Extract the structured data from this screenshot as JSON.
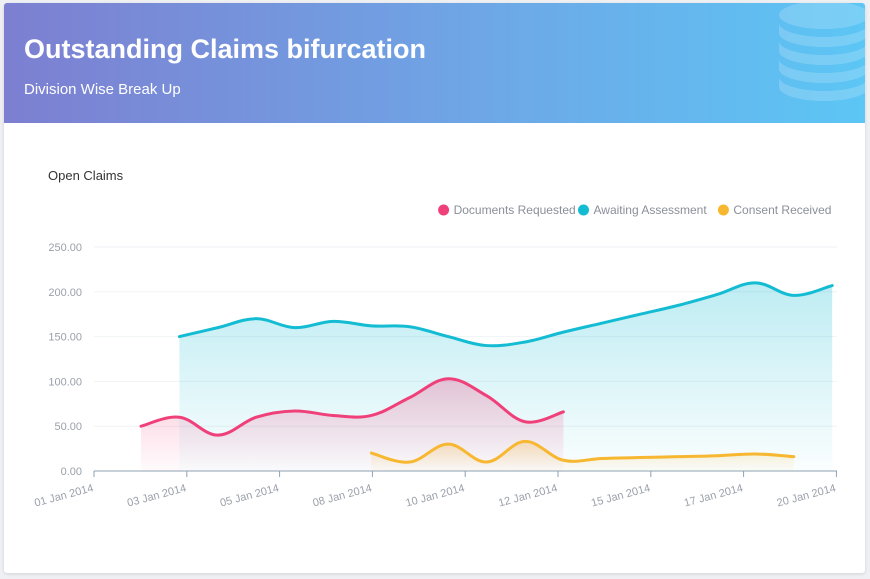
{
  "header": {
    "title": "Outstanding Claims bifurcation",
    "subtitle": "Division Wise Break Up",
    "icon": "database-icon"
  },
  "chart_data": {
    "type": "area",
    "title": "Open Claims",
    "legend_position": "top-right",
    "grid": true,
    "ylim": [
      0,
      250
    ],
    "y_ticks": [
      "0.00",
      "50.00",
      "100.00",
      "150.00",
      "200.00",
      "250.00"
    ],
    "x_ticks": [
      "01 Jan 2014",
      "03 Jan 2014",
      "05 Jan 2014",
      "08 Jan 2014",
      "10 Jan 2014",
      "12 Jan 2014",
      "15 Jan 2014",
      "17 Jan 2014",
      "20 Jan 2014"
    ],
    "series": [
      {
        "name": "Documents Requested",
        "color": "#f0407a",
        "points": [
          [
            0.0,
            50
          ],
          [
            0.4,
            60
          ],
          [
            0.8,
            40
          ],
          [
            1.2,
            60
          ],
          [
            1.6,
            67
          ],
          [
            2.0,
            62
          ],
          [
            2.4,
            62
          ],
          [
            2.8,
            82
          ],
          [
            3.2,
            103
          ],
          [
            3.6,
            84
          ],
          [
            4.0,
            55
          ],
          [
            4.4,
            66
          ]
        ]
      },
      {
        "name": "Awaiting Assessment",
        "color": "#14bcd3",
        "points": [
          [
            0.4,
            150
          ],
          [
            0.8,
            160
          ],
          [
            1.2,
            170
          ],
          [
            1.6,
            160
          ],
          [
            2.0,
            167
          ],
          [
            2.4,
            162
          ],
          [
            2.8,
            161
          ],
          [
            3.2,
            150
          ],
          [
            3.6,
            140
          ],
          [
            4.0,
            144
          ],
          [
            4.4,
            155
          ],
          [
            4.8,
            165
          ],
          [
            5.2,
            175
          ],
          [
            5.6,
            185
          ],
          [
            6.0,
            197
          ],
          [
            6.4,
            210
          ],
          [
            6.8,
            196
          ],
          [
            7.2,
            207
          ]
        ]
      },
      {
        "name": "Consent Received",
        "color": "#f7b731",
        "points": [
          [
            2.4,
            20
          ],
          [
            2.8,
            10
          ],
          [
            3.2,
            30
          ],
          [
            3.6,
            10
          ],
          [
            4.0,
            33
          ],
          [
            4.4,
            12
          ],
          [
            4.8,
            14
          ],
          [
            5.2,
            15
          ],
          [
            5.6,
            16
          ],
          [
            6.0,
            17
          ],
          [
            6.4,
            19
          ],
          [
            6.8,
            16
          ]
        ]
      }
    ]
  }
}
